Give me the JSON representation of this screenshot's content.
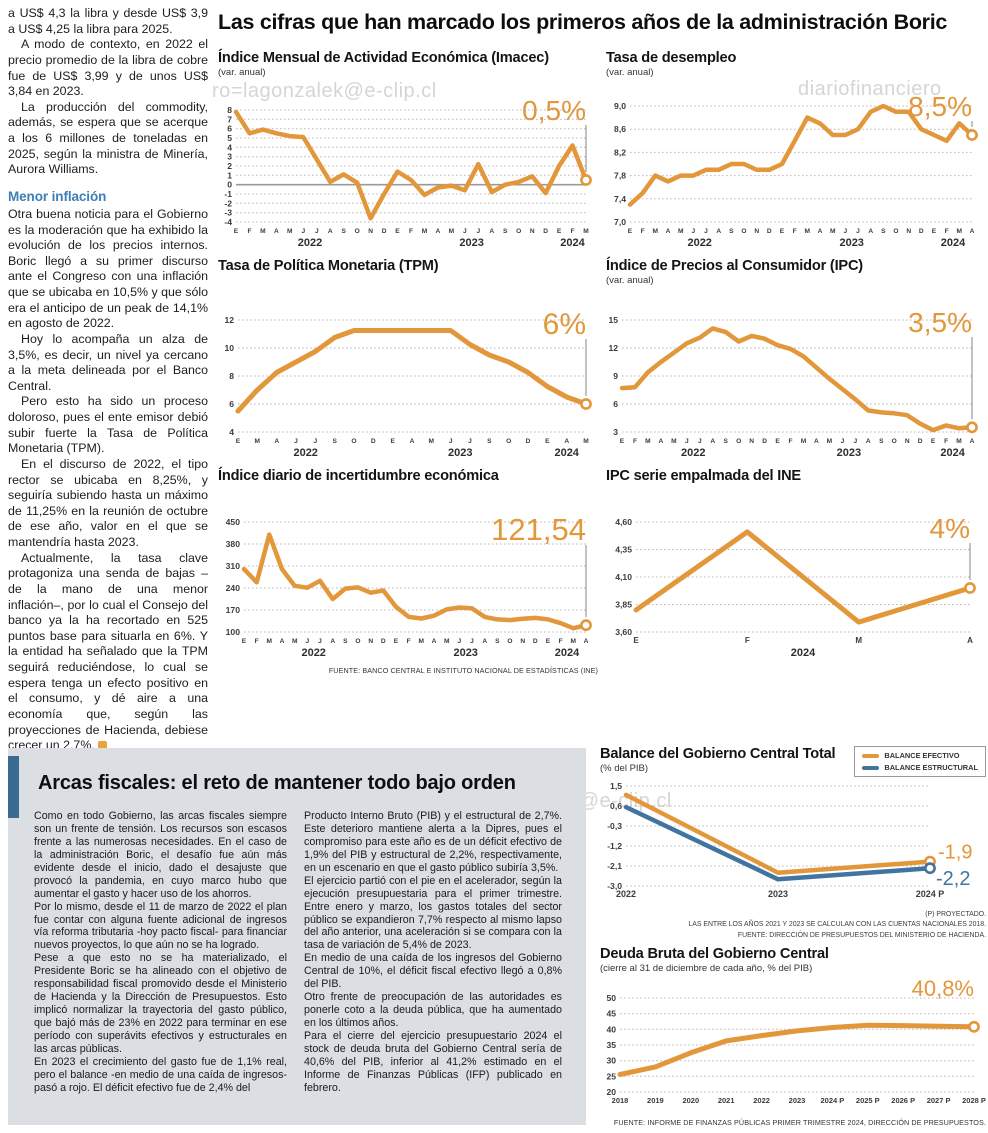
{
  "colors": {
    "accent_orange": "#E2973B",
    "accent_blue": "#41749F",
    "subhead_blue": "#3E7DB5",
    "panel_gray": "#DBDFE4",
    "bar_blue": "#3A6B90"
  },
  "watermarks": {
    "top_left": "ro=lagonzalek@e-clip.cl",
    "top_right": "diariofinanciero",
    "middle": "ero.#lagonzalek@e-clip.cl"
  },
  "article": {
    "paragraphs": [
      "a US$ 4,3 la libra y desde US$ 3,9 a US$ 4,25 la libra para 2025.",
      "A modo de contexto, en 2022 el precio promedio de la libra de cobre fue de US$ 3,99 y de unos US$ 3,84 en 2023.",
      "La producción del commodity, además, se espera que se acerque a los 6 millones de toneladas en 2025, según la ministra de Minería, Aurora Williams."
    ],
    "subhead": "Menor inflación",
    "paragraphs2": [
      "Otra buena noticia para el Gobierno es la moderación que ha exhibido la evolución de los precios internos. Boric llegó a su primer discurso ante el Congreso con una inflación que se ubicaba en 10,5% y que sólo era el anticipo de un peak de 14,1% en agosto de 2022.",
      "Hoy lo acompaña un alza de 3,5%, es decir, un nivel ya cercano a la meta delineada por el Banco Central.",
      "Pero esto ha sido un proceso doloroso, pues el ente emisor debió subir fuerte la Tasa de Política Monetaria (TPM).",
      "En el discurso de 2022, el tipo rector se ubicaba en 8,25%, y seguiría subiendo hasta un máximo de 11,25% en la reunión de octubre de ese año, valor en el que se mantendría hasta 2023.",
      "Actualmente, la tasa clave protagoniza una senda de bajas –de la mano de una menor inflación–, por lo cual el Consejo del banco ya la ha recortado en 525 puntos base para situarla en 6%. Y la entidad ha señalado que la TPM seguirá reduciéndose, lo cual se espera tenga un efecto positivo en el consumo, y dé aire a una economía que, según las proyecciones de Hacienda, debiese crecer un 2,7%."
    ]
  },
  "main": {
    "headline": "Las cifras que han marcado los primeros años de la administración Boric",
    "chart_source": "FUENTE: BANCO CENTRAL E INSTITUTO NACIONAL DE ESTADÍSTICAS (INE)"
  },
  "chart_data": [
    {
      "type": "line",
      "title": "Índice Mensual de Actividad Económica (Imacec)",
      "subtitle": "(var. anual)",
      "value_label": "0,5%",
      "ylim": [
        -4,
        8
      ],
      "zero_line": true,
      "yticks": [
        {
          "v": 8,
          "label": "8"
        },
        {
          "v": 7,
          "label": "7"
        },
        {
          "v": 6,
          "label": "6"
        },
        {
          "v": 5,
          "label": "5"
        },
        {
          "v": 4,
          "label": "4"
        },
        {
          "v": 3,
          "label": "3"
        },
        {
          "v": 2,
          "label": "2"
        },
        {
          "v": 1,
          "label": "1"
        },
        {
          "v": 0,
          "label": "0"
        },
        {
          "v": -1,
          "label": "-1"
        },
        {
          "v": -2,
          "label": "-2"
        },
        {
          "v": -3,
          "label": "-3"
        },
        {
          "v": -4,
          "label": "-4"
        }
      ],
      "x_labels": [
        "E",
        "F",
        "M",
        "A",
        "M",
        "J",
        "J",
        "A",
        "S",
        "O",
        "N",
        "D",
        "E",
        "F",
        "M",
        "A",
        "M",
        "J",
        "J",
        "A",
        "S",
        "O",
        "N",
        "D",
        "E",
        "F",
        "M"
      ],
      "year_labels": [
        {
          "label": "2022",
          "at": 5.5
        },
        {
          "label": "2023",
          "at": 17.5
        },
        {
          "label": "2024",
          "at": 25
        }
      ],
      "series": [
        {
          "name": "Imacec var. anual",
          "color": "#E2973B",
          "values": [
            7.8,
            5.5,
            5.9,
            5.5,
            5.2,
            5.1,
            2.7,
            0.3,
            1.1,
            0.2,
            -3.6,
            -1.0,
            1.4,
            0.5,
            -1.1,
            -0.3,
            -0.1,
            -0.6,
            2.2,
            -0.8,
            0.0,
            0.3,
            0.9,
            -0.9,
            2.0,
            4.2,
            0.5
          ]
        }
      ]
    },
    {
      "type": "line",
      "title": "Tasa de desempleo",
      "subtitle": "(var. anual)",
      "value_label": "8,5%",
      "ylim": [
        7.0,
        9.0
      ],
      "yticks": [
        {
          "v": 9.0,
          "label": "9,0"
        },
        {
          "v": 8.6,
          "label": "8,6"
        },
        {
          "v": 8.2,
          "label": "8,2"
        },
        {
          "v": 7.8,
          "label": "7,8"
        },
        {
          "v": 7.4,
          "label": "7,4"
        },
        {
          "v": 7.0,
          "label": "7,0"
        }
      ],
      "x_labels": [
        "E",
        "F",
        "M",
        "A",
        "M",
        "J",
        "J",
        "A",
        "S",
        "O",
        "N",
        "D",
        "E",
        "F",
        "M",
        "A",
        "M",
        "J",
        "J",
        "A",
        "S",
        "O",
        "N",
        "D",
        "E",
        "F",
        "M",
        "A"
      ],
      "year_labels": [
        {
          "label": "2022",
          "at": 5.5
        },
        {
          "label": "2023",
          "at": 17.5
        },
        {
          "label": "2024",
          "at": 25.5
        }
      ],
      "series": [
        {
          "name": "Tasa de desempleo",
          "color": "#E2973B",
          "values": [
            7.3,
            7.5,
            7.8,
            7.7,
            7.8,
            7.8,
            7.9,
            7.9,
            8.0,
            8.0,
            7.9,
            7.9,
            8.0,
            8.4,
            8.8,
            8.7,
            8.5,
            8.5,
            8.6,
            8.9,
            9.0,
            8.9,
            8.9,
            8.6,
            8.5,
            8.4,
            8.7,
            8.5
          ]
        }
      ]
    },
    {
      "type": "line",
      "title": "Tasa de Política Monetaria (TPM)",
      "subtitle": "",
      "value_label": "6%",
      "ylim": [
        4,
        12
      ],
      "yticks": [
        {
          "v": 12,
          "label": "12"
        },
        {
          "v": 10,
          "label": "10"
        },
        {
          "v": 8,
          "label": "8"
        },
        {
          "v": 6,
          "label": "6"
        },
        {
          "v": 4,
          "label": "4"
        }
      ],
      "x_labels": [
        "E",
        "M",
        "A",
        "J",
        "J",
        "S",
        "O",
        "D",
        "E",
        "A",
        "M",
        "J",
        "J",
        "S",
        "O",
        "D",
        "E",
        "A",
        "M"
      ],
      "year_labels": [
        {
          "label": "2022",
          "at": 3.5
        },
        {
          "label": "2023",
          "at": 11.5
        },
        {
          "label": "2024",
          "at": 17
        }
      ],
      "series": [
        {
          "name": "TPM",
          "color": "#E2973B",
          "values": [
            5.5,
            7.0,
            8.25,
            9.0,
            9.75,
            10.75,
            11.25,
            11.25,
            11.25,
            11.25,
            11.25,
            11.25,
            10.25,
            9.5,
            9.0,
            8.25,
            7.25,
            6.5,
            6.0
          ]
        }
      ]
    },
    {
      "type": "line",
      "title": "Índice de Precios al Consumidor (IPC)",
      "subtitle": "(var. anual)",
      "value_label": "3,5%",
      "ylim": [
        3,
        15
      ],
      "yticks": [
        {
          "v": 15,
          "label": "15"
        },
        {
          "v": 12,
          "label": "12"
        },
        {
          "v": 9,
          "label": "9"
        },
        {
          "v": 6,
          "label": "6"
        },
        {
          "v": 3,
          "label": "3"
        }
      ],
      "x_labels": [
        "E",
        "F",
        "M",
        "A",
        "M",
        "J",
        "J",
        "A",
        "S",
        "O",
        "N",
        "D",
        "E",
        "F",
        "M",
        "A",
        "M",
        "J",
        "J",
        "A",
        "S",
        "O",
        "N",
        "D",
        "E",
        "F",
        "M",
        "A"
      ],
      "year_labels": [
        {
          "label": "2022",
          "at": 5.5
        },
        {
          "label": "2023",
          "at": 17.5
        },
        {
          "label": "2024",
          "at": 25.5
        }
      ],
      "series": [
        {
          "name": "IPC var. anual",
          "color": "#E2973B",
          "values": [
            7.7,
            7.8,
            9.4,
            10.5,
            11.5,
            12.5,
            13.1,
            14.1,
            13.7,
            12.7,
            13.3,
            13.0,
            12.3,
            11.9,
            11.1,
            9.9,
            8.7,
            7.6,
            6.5,
            5.3,
            5.1,
            5.0,
            4.8,
            3.9,
            3.2,
            3.7,
            3.4,
            3.5
          ]
        }
      ]
    },
    {
      "type": "line",
      "title": "Índice diario de incertidumbre económica",
      "subtitle": "",
      "value_label": "121,54",
      "ylim": [
        100,
        450
      ],
      "yticks": [
        {
          "v": 450,
          "label": "450"
        },
        {
          "v": 380,
          "label": "380"
        },
        {
          "v": 310,
          "label": "310"
        },
        {
          "v": 240,
          "label": "240"
        },
        {
          "v": 170,
          "label": "170"
        },
        {
          "v": 100,
          "label": "100"
        }
      ],
      "x_labels": [
        "E",
        "F",
        "M",
        "A",
        "M",
        "J",
        "J",
        "A",
        "S",
        "O",
        "N",
        "D",
        "E",
        "F",
        "M",
        "A",
        "M",
        "J",
        "J",
        "A",
        "S",
        "O",
        "N",
        "D",
        "E",
        "F",
        "M",
        "A"
      ],
      "year_labels": [
        {
          "label": "2022",
          "at": 5.5
        },
        {
          "label": "2023",
          "at": 17.5
        },
        {
          "label": "2024",
          "at": 25.5
        }
      ],
      "series": [
        {
          "name": "Incertidumbre económica",
          "color": "#E2973B",
          "values": [
            300,
            258,
            410,
            300,
            247,
            241,
            263,
            205,
            238,
            242,
            225,
            232,
            180,
            148,
            143,
            152,
            172,
            178,
            175,
            148,
            140,
            138,
            142,
            145,
            140,
            128,
            112,
            121.54
          ]
        }
      ]
    },
    {
      "type": "line",
      "title": "IPC serie empalmada del INE",
      "subtitle": "",
      "value_label": "4%",
      "ylim": [
        3.6,
        4.6
      ],
      "yticks": [
        {
          "v": 4.6,
          "label": "4,60"
        },
        {
          "v": 4.35,
          "label": "4,35"
        },
        {
          "v": 4.1,
          "label": "4,10"
        },
        {
          "v": 3.85,
          "label": "3,85"
        },
        {
          "v": 3.6,
          "label": "3,60"
        }
      ],
      "x_labels": [
        "E",
        "F",
        "M",
        "A"
      ],
      "year_labels": [
        {
          "label": "2024",
          "at": 1.5
        }
      ],
      "series": [
        {
          "name": "IPC serie empalmada",
          "color": "#E2973B",
          "values": [
            3.8,
            4.51,
            3.69,
            4.0
          ]
        }
      ]
    },
    {
      "type": "line",
      "title": "Balance del Gobierno Central Total",
      "subtitle": "(% del PIB)",
      "ylim": [
        -3.0,
        1.5
      ],
      "yticks": [
        {
          "v": 1.5,
          "label": "1,5"
        },
        {
          "v": 0.6,
          "label": "0,6"
        },
        {
          "v": -0.3,
          "label": "-0,3"
        },
        {
          "v": -1.2,
          "label": "-1,2"
        },
        {
          "v": -2.1,
          "label": "-2,1"
        },
        {
          "v": -3.0,
          "label": "-3,0"
        }
      ],
      "x_labels": [
        "2022",
        "2023",
        "2024 P"
      ],
      "legend": [
        {
          "label": "BALANCE EFECTIVO",
          "color": "#E2973B"
        },
        {
          "label": "BALANCE ESTRUCTURAL",
          "color": "#41749F"
        }
      ],
      "series": [
        {
          "name": "Balance efectivo",
          "color": "#E2973B",
          "end_label": "-1,9",
          "end_dx": 8,
          "end_dy": -3,
          "values": [
            1.1,
            -2.4,
            -1.9
          ]
        },
        {
          "name": "Balance estructural",
          "color": "#41749F",
          "end_label": "-2,2",
          "end_dx": 6,
          "end_dy": 17,
          "values": [
            0.55,
            -2.7,
            -2.2
          ]
        }
      ],
      "footnotes": [
        "(P) PROYECTADO.",
        "LAS ENTRE LOS AÑOS 2021 Y 2023 SE CALCULAN  CON LAS CUENTAS NACIONALES 2018.",
        "FUENTE: DIRECCIÓN DE PRESUPUESTOS DEL MINISTERIO DE HACIENDA."
      ]
    },
    {
      "type": "line",
      "title": "Deuda Bruta del Gobierno Central",
      "subtitle": "(cierre al 31 de diciembre de cada año, % del PIB)",
      "value_label": "40,8%",
      "ylim": [
        20,
        50
      ],
      "yticks": [
        {
          "v": 50,
          "label": "50"
        },
        {
          "v": 45,
          "label": "45"
        },
        {
          "v": 40,
          "label": "40"
        },
        {
          "v": 35,
          "label": "35"
        },
        {
          "v": 30,
          "label": "30"
        },
        {
          "v": 25,
          "label": "25"
        },
        {
          "v": 20,
          "label": "20"
        }
      ],
      "x_labels": [
        "2018",
        "2019",
        "2020",
        "2021",
        "2022",
        "2023",
        "2024 P",
        "2025 P",
        "2026 P",
        "2027 P",
        "2028 P"
      ],
      "series": [
        {
          "name": "Deuda bruta % del PIB",
          "color": "#E2973B",
          "values": [
            25.6,
            28.0,
            32.5,
            36.3,
            38.0,
            39.5,
            40.6,
            41.3,
            41.2,
            41.0,
            40.8
          ]
        }
      ],
      "source": "FUENTE: INFORME DE FINANZAS PÚBLICAS PRIMER TRIMESTRE 2024, DIRECCIÓN DE PRESUPUESTOS."
    }
  ],
  "fiscal": {
    "headline": "Arcas fiscales: el reto de mantener todo bajo orden",
    "col1": [
      "Como en todo Gobierno, las arcas fiscales siempre son un frente de tensión. Los recursos son escasos frente a las numerosas necesidades. En el caso de la administración Boric, el desafío fue aún más evidente desde el inicio, dado el desajuste que provocó la pandemia, en cuyo marco hubo que aumentar el gasto y hacer uso de los ahorros.",
      "Por lo mismo, desde el 11 de marzo de 2022 el plan fue contar con alguna fuente adicional de ingresos vía reforma tributaria -hoy pacto fiscal- para financiar nuevos proyectos, lo que aún no se ha logrado.",
      "Pese a que esto no se ha materializado, el Presidente Boric se ha alineado con el objetivo de responsabilidad fiscal promovido desde el Ministerio de Hacienda y la Dirección de Presupuestos. Esto implicó normalizar la trayectoria del gasto público, que bajó más de 23% en 2022 para terminar en ese período con superávits efectivos y estructurales en las arcas públicas.",
      "En 2023 el crecimiento del gasto fue de 1,1% real, pero el balance -en medio de una caída de ingresos-  pasó a rojo. El déficit efectivo fue de 2,4% del"
    ],
    "col2": [
      "Producto Interno Bruto (PIB) y el estructural de 2,7%. Este deterioro mantiene alerta a la Dipres, pues el compromiso para este año es de un déficit efectivo de 1,9% del PIB y estructural de 2,2%, respectivamente, en un escenario en que el gasto público subiría 3,5%.",
      "El ejercicio partió con el pie en el acelerador, según la ejecución presupuestaria para el primer trimestre. Entre enero y marzo, los gastos totales del sector público se expandieron 7,7% respecto al mismo lapso del año anterior, una aceleración si se compara con la tasa de variación de 5,4% de 2023.",
      "En medio de una caída de los ingresos del Gobierno Central de 10%, el déficit fiscal efectivo llegó a 0,8% del PIB.",
      "Otro frente de preocupación de las autoridades es ponerle coto a la deuda pública, que ha aumentado en los últimos años.",
      "Para el cierre del ejercicio presupuestario 2024 el stock de deuda bruta del Gobierno Central sería de 40,6% del PIB, inferior al 41,2% estimado en el Informe de Finanzas Públicas (IFP) publicado en febrero."
    ]
  }
}
